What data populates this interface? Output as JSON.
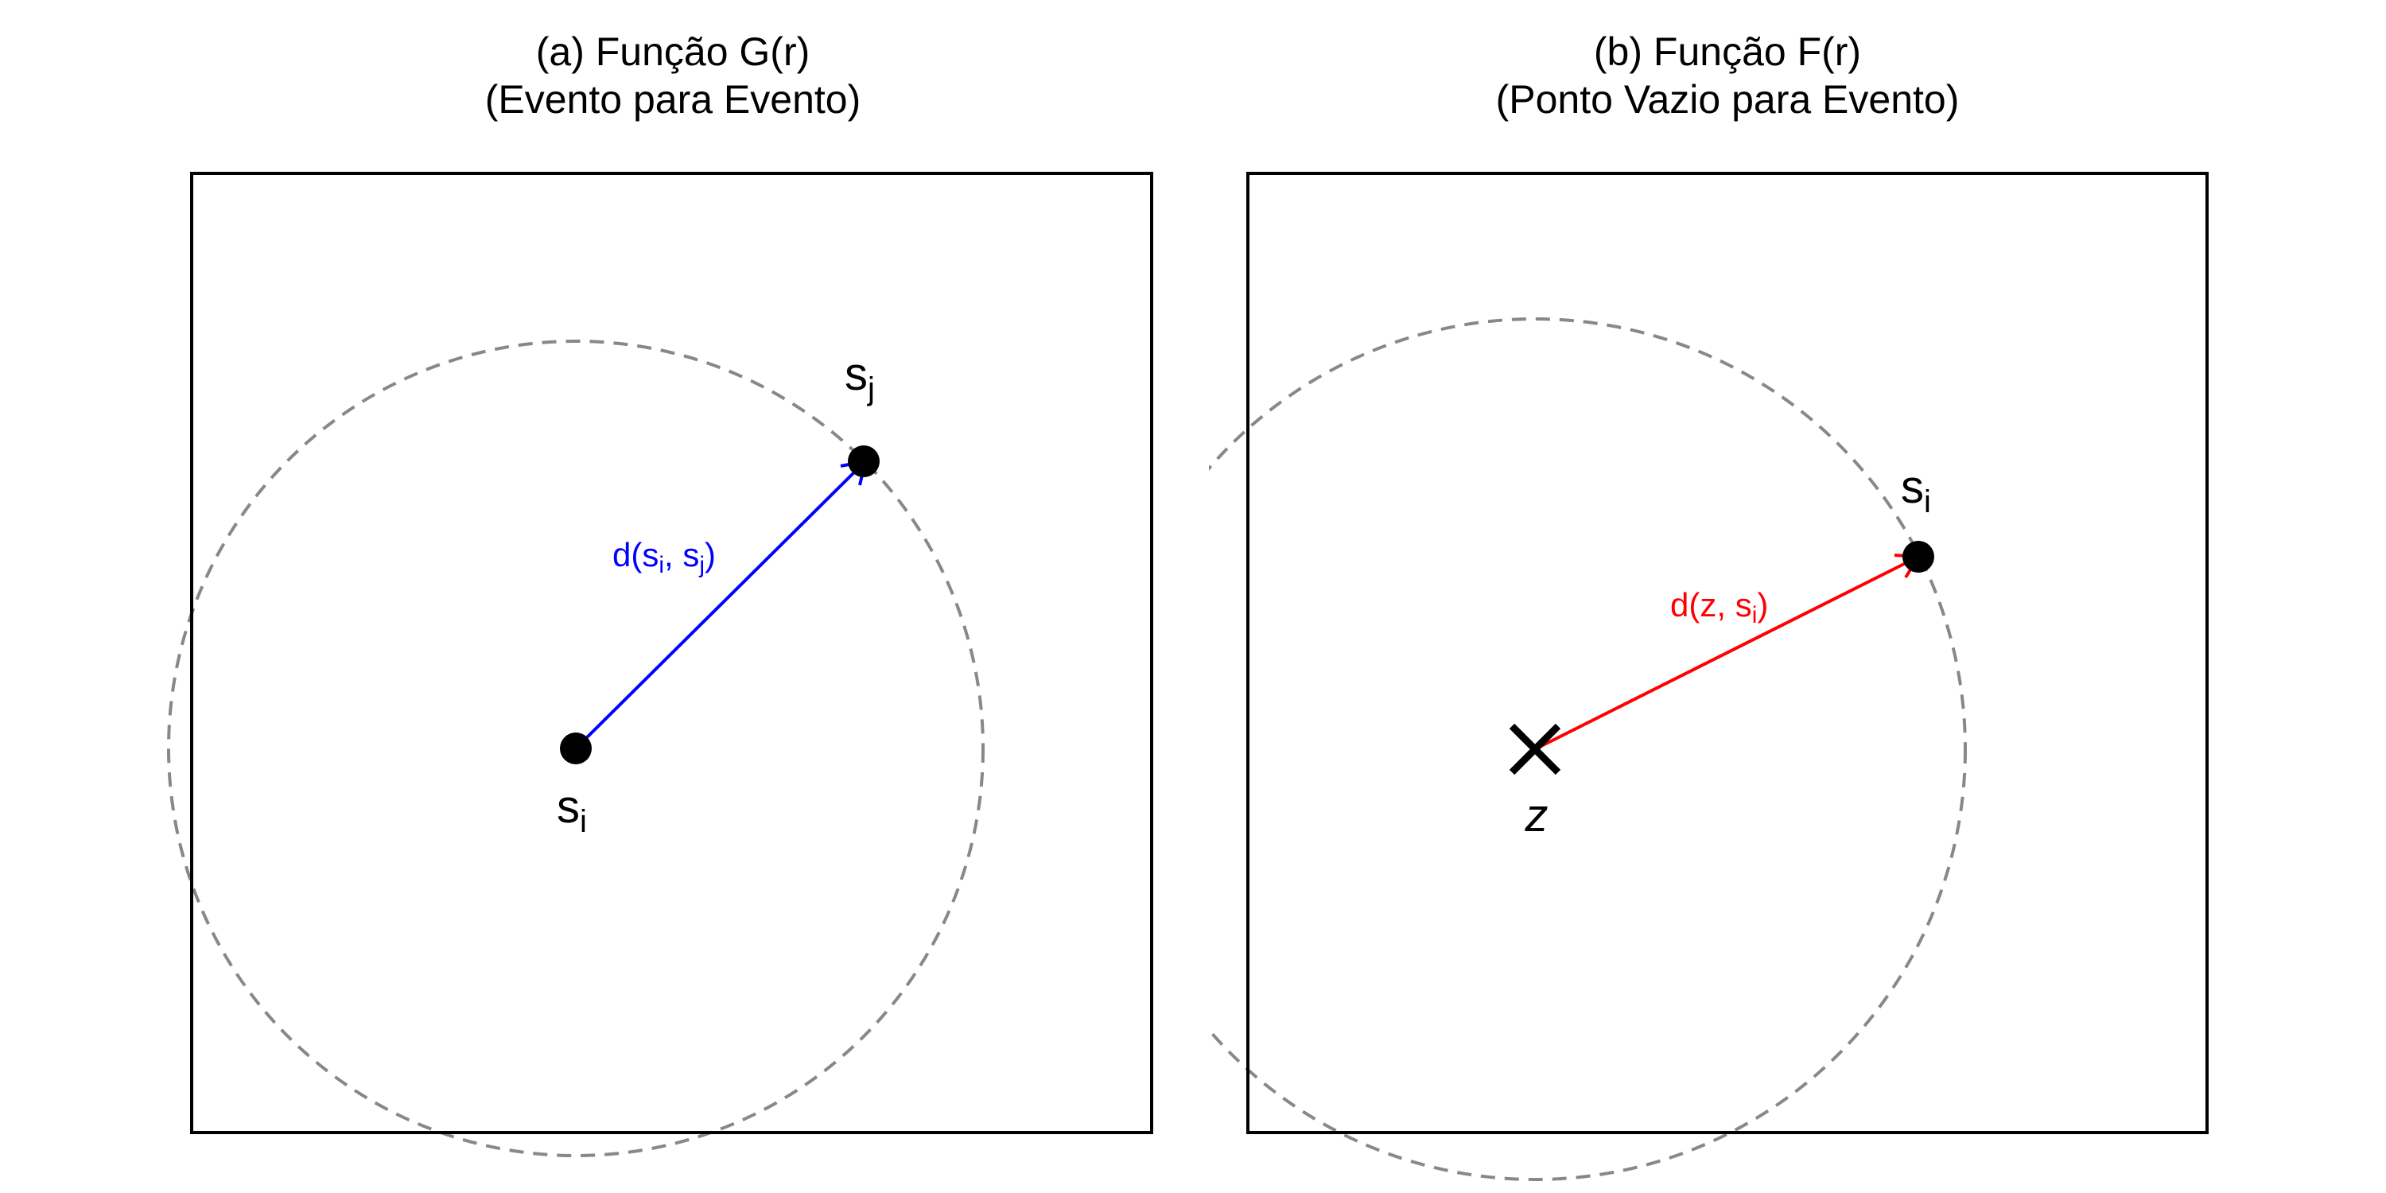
{
  "panels": [
    {
      "title_line1": "(a) Função G(r)",
      "title_line2": "(Evento para Evento)",
      "origin": {
        "base": "s",
        "sub": "i"
      },
      "target": {
        "base": "s",
        "sub": "j"
      },
      "distance": {
        "prefix": "d(",
        "a": "s",
        "a_sub": "i",
        "sep": ", ",
        "b": "s",
        "b_sub": "j",
        "suffix": ")"
      },
      "arrow_color": "#0000ff"
    },
    {
      "title_line1": "(b) Função F(r)",
      "title_line2": "(Ponto Vazio para Evento)",
      "origin": {
        "base": "z"
      },
      "target": {
        "base": "s",
        "sub": "i"
      },
      "distance": {
        "prefix": "d(",
        "a": "z",
        "sep": ", ",
        "b": "s",
        "b_sub": "i",
        "suffix": ")"
      },
      "arrow_color": "#ff0000"
    }
  ],
  "circle_color": "#888888",
  "frame_color": "#000000"
}
